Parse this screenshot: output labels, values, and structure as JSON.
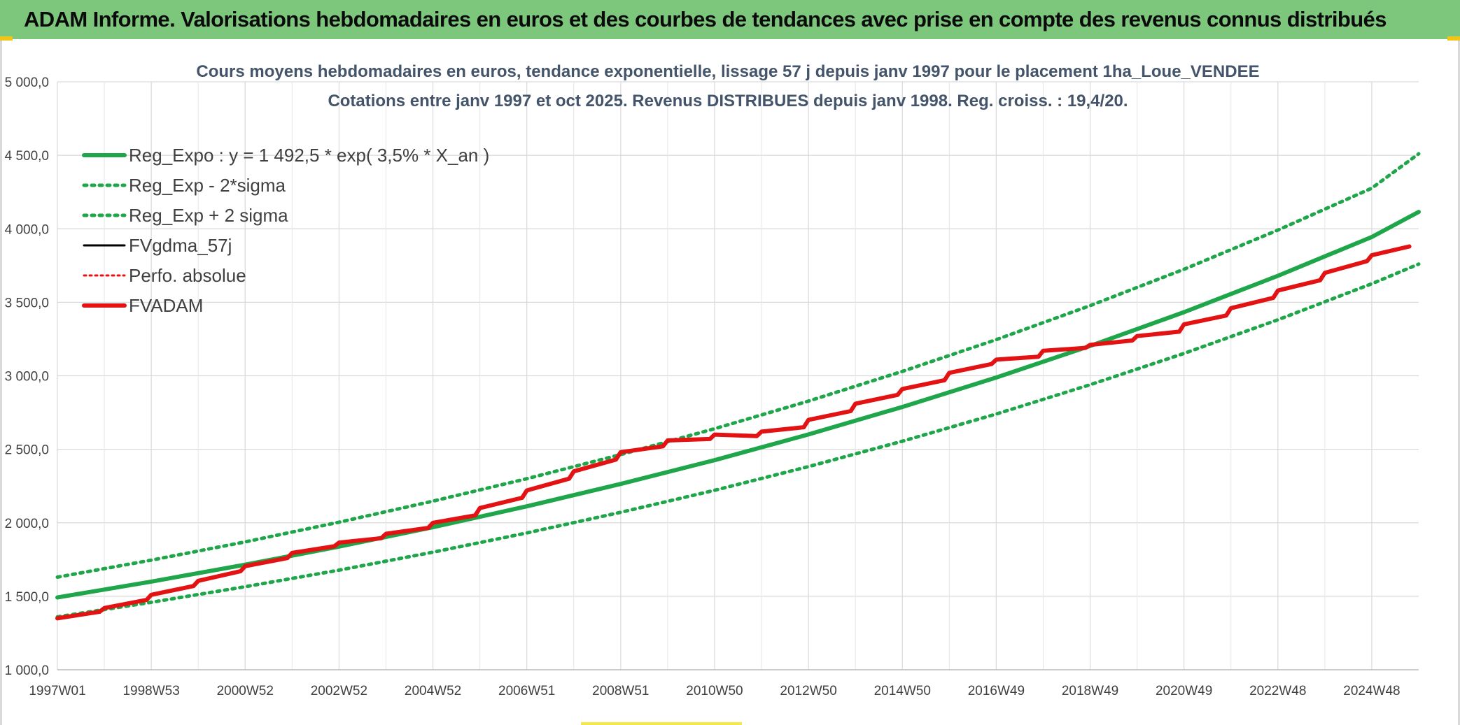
{
  "header": {
    "title": "ADAM Informe. Valorisations hebdomadaires en euros et des courbes de tendances avec prise en compte des revenus connus distribués"
  },
  "chart_data": {
    "type": "line",
    "title": "Cours moyens hebdomadaires en euros, tendance exponentielle, lissage 57 j depuis janv 1997 pour le placement 1ha_Loue_VENDEE",
    "subtitle": "Cotations entre janv 1997 et oct 2025. Revenus DISTRIBUES depuis janv 1998. Reg. croiss. : 19,4/20.",
    "xlabel": "",
    "ylabel": "",
    "ylim": [
      1000,
      5000
    ],
    "yticks": [
      "1 000,0",
      "1 500,0",
      "2 000,0",
      "2 500,0",
      "3 000,0",
      "3 500,0",
      "4 000,0",
      "4 500,0",
      "5 000,0"
    ],
    "xticks": [
      "1997W01",
      "1998W53",
      "2000W52",
      "2002W52",
      "2004W52",
      "2006W51",
      "2008W51",
      "2010W50",
      "2012W50",
      "2014W50",
      "2016W49",
      "2018W49",
      "2020W49",
      "2022W48",
      "2024W48"
    ],
    "x_range_years": [
      1997.0,
      2026.0
    ],
    "grid": true,
    "legend_position": "top-left",
    "series": [
      {
        "name": "Reg_Expo : y = 1 492,5 * exp( 3,5% *  X_an )",
        "color": "#1fa64a",
        "style": "solid",
        "x": [
          1997,
          1999,
          2001,
          2003,
          2005,
          2007,
          2009,
          2011,
          2013,
          2015,
          2017,
          2019,
          2021,
          2023,
          2025,
          2026
        ],
        "values": [
          1492,
          1600,
          1715,
          1838,
          1970,
          2112,
          2264,
          2426,
          2601,
          2788,
          2988,
          3203,
          3433,
          3680,
          3944,
          4115
        ]
      },
      {
        "name": "Reg_Exp - 2*sigma",
        "color": "#1fa64a",
        "style": "dotted",
        "x": [
          1997,
          1999,
          2001,
          2003,
          2005,
          2007,
          2009,
          2011,
          2013,
          2015,
          2017,
          2019,
          2021,
          2023,
          2025,
          2026
        ],
        "values": [
          1360,
          1459,
          1565,
          1678,
          1800,
          1931,
          2071,
          2221,
          2382,
          2555,
          2740,
          2939,
          3152,
          3381,
          3626,
          3760
        ]
      },
      {
        "name": "Reg_Exp + 2 sigma",
        "color": "#1fa64a",
        "style": "dotted",
        "x": [
          1997,
          1999,
          2001,
          2003,
          2005,
          2007,
          2009,
          2011,
          2013,
          2015,
          2017,
          2019,
          2021,
          2023,
          2025,
          2026
        ],
        "values": [
          1630,
          1746,
          1870,
          2004,
          2147,
          2300,
          2464,
          2640,
          2828,
          3030,
          3246,
          3477,
          3725,
          3991,
          4276,
          4510
        ]
      },
      {
        "name": "FVgdma_57j",
        "color": "#000000",
        "style": "solid",
        "x": [
          1997.0,
          1997.9,
          1998.0,
          1998.9,
          1999.0,
          1999.9,
          2000.0,
          2000.9,
          2001.0,
          2001.9,
          2002.0,
          2002.9,
          2003.0,
          2003.9,
          2004.0,
          2004.9,
          2005.0,
          2005.9,
          2006.0,
          2006.9,
          2007.0,
          2007.9,
          2008.0,
          2008.9,
          2009.0,
          2009.9,
          2010.0,
          2010.9,
          2011.0,
          2011.9,
          2012.0,
          2012.9,
          2013.0,
          2013.9,
          2014.0,
          2014.9,
          2015.0,
          2015.9,
          2016.0,
          2016.9,
          2017.0,
          2017.9,
          2018.0,
          2018.9,
          2019.0,
          2019.9,
          2020.0,
          2020.9,
          2021.0,
          2021.9,
          2022.0,
          2022.9,
          2023.0,
          2023.9,
          2024.0,
          2024.9,
          2025.0,
          2025.8
        ],
        "values": [
          1350,
          1395,
          1420,
          1475,
          1510,
          1570,
          1605,
          1670,
          1705,
          1760,
          1795,
          1840,
          1865,
          1895,
          1925,
          1965,
          2000,
          2050,
          2100,
          2170,
          2220,
          2300,
          2350,
          2430,
          2480,
          2520,
          2560,
          2570,
          2600,
          2590,
          2620,
          2650,
          2700,
          2760,
          2810,
          2870,
          2910,
          2970,
          3020,
          3080,
          3110,
          3130,
          3170,
          3190,
          3210,
          3240,
          3270,
          3300,
          3350,
          3410,
          3460,
          3530,
          3580,
          3650,
          3700,
          3780,
          3820,
          3880
        ]
      },
      {
        "name": "Perfo. absolue",
        "color": "#e31313",
        "style": "dotted",
        "x": [
          1997.0,
          1997.9,
          1998.0,
          1998.9,
          1999.0,
          1999.9,
          2000.0,
          2000.9,
          2001.0,
          2001.9,
          2002.0,
          2002.9,
          2003.0,
          2003.9,
          2004.0,
          2004.9,
          2005.0,
          2005.9,
          2006.0,
          2006.9,
          2007.0,
          2007.9,
          2008.0,
          2008.9,
          2009.0,
          2009.9,
          2010.0,
          2010.9,
          2011.0,
          2011.9,
          2012.0,
          2012.9,
          2013.0,
          2013.9,
          2014.0,
          2014.9,
          2015.0,
          2015.9,
          2016.0,
          2016.9,
          2017.0,
          2017.9,
          2018.0,
          2018.9,
          2019.0,
          2019.9,
          2020.0,
          2020.9,
          2021.0,
          2021.9,
          2022.0,
          2022.9,
          2023.0,
          2023.9,
          2024.0,
          2024.9,
          2025.0,
          2025.8
        ],
        "values": [
          1350,
          1395,
          1420,
          1475,
          1510,
          1570,
          1605,
          1670,
          1705,
          1760,
          1795,
          1840,
          1865,
          1895,
          1925,
          1965,
          2000,
          2050,
          2100,
          2170,
          2220,
          2300,
          2350,
          2430,
          2480,
          2520,
          2560,
          2570,
          2600,
          2590,
          2620,
          2650,
          2700,
          2760,
          2810,
          2870,
          2910,
          2970,
          3020,
          3080,
          3110,
          3130,
          3170,
          3190,
          3210,
          3240,
          3270,
          3300,
          3350,
          3410,
          3460,
          3530,
          3580,
          3650,
          3700,
          3780,
          3820,
          3880
        ]
      },
      {
        "name": "FVADAM",
        "color": "#e31313",
        "style": "solid",
        "x": [
          1997.0,
          1997.9,
          1998.0,
          1998.9,
          1999.0,
          1999.9,
          2000.0,
          2000.9,
          2001.0,
          2001.9,
          2002.0,
          2002.9,
          2003.0,
          2003.9,
          2004.0,
          2004.9,
          2005.0,
          2005.9,
          2006.0,
          2006.9,
          2007.0,
          2007.9,
          2008.0,
          2008.9,
          2009.0,
          2009.9,
          2010.0,
          2010.9,
          2011.0,
          2011.9,
          2012.0,
          2012.9,
          2013.0,
          2013.9,
          2014.0,
          2014.9,
          2015.0,
          2015.9,
          2016.0,
          2016.9,
          2017.0,
          2017.9,
          2018.0,
          2018.9,
          2019.0,
          2019.9,
          2020.0,
          2020.9,
          2021.0,
          2021.9,
          2022.0,
          2022.9,
          2023.0,
          2023.9,
          2024.0,
          2024.9,
          2025.0,
          2025.8
        ],
        "values": [
          1350,
          1395,
          1420,
          1475,
          1510,
          1570,
          1605,
          1670,
          1705,
          1760,
          1795,
          1840,
          1865,
          1895,
          1925,
          1965,
          2000,
          2050,
          2100,
          2170,
          2220,
          2300,
          2350,
          2430,
          2480,
          2520,
          2560,
          2570,
          2600,
          2590,
          2620,
          2650,
          2700,
          2760,
          2810,
          2870,
          2910,
          2970,
          3020,
          3080,
          3110,
          3130,
          3170,
          3190,
          3210,
          3240,
          3270,
          3300,
          3350,
          3410,
          3460,
          3530,
          3580,
          3650,
          3700,
          3780,
          3820,
          3880
        ]
      }
    ]
  }
}
